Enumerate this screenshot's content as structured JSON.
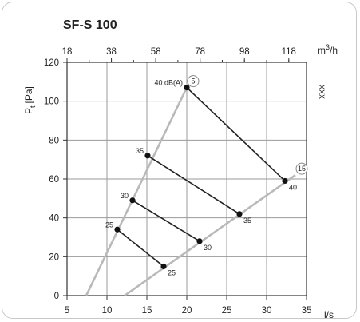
{
  "chart_data": {
    "type": "line",
    "title": "SF-S 100",
    "xlabel": "l/s",
    "ylabel": "Pt [Pa]",
    "ylabel_main": "P",
    "ylabel_sub": "t",
    "ylabel_unit": "[Pa]",
    "x2label": "m3/h",
    "x2label_main": "m",
    "x2label_sup": "3",
    "x2label_rest": "/h",
    "xlim": [
      5,
      35
    ],
    "ylim": [
      0,
      120
    ],
    "x_ticks": [
      "5",
      "10",
      "15",
      "20",
      "25",
      "30",
      "35"
    ],
    "y_ticks": [
      "0",
      "20",
      "40",
      "60",
      "80",
      "100",
      "120"
    ],
    "x2_ticks": [
      "18",
      "38",
      "58",
      "78",
      "98",
      "118"
    ],
    "side_note": "XXX",
    "grid": true,
    "series": [
      {
        "name": "5",
        "role": "curve",
        "color": "#b9b9b9",
        "points": [
          [
            7.4,
            0
          ],
          [
            20,
            107
          ]
        ]
      },
      {
        "name": "15",
        "role": "curve",
        "color": "#b9b9b9",
        "points": [
          [
            12.2,
            0
          ],
          [
            33.6,
            62
          ]
        ]
      },
      {
        "label": "40 dB(A)",
        "end_label": "40",
        "role": "sound",
        "color": "#222222",
        "points": [
          [
            20,
            107
          ],
          [
            32.3,
            59
          ]
        ]
      },
      {
        "label": "35",
        "end_label": "35",
        "role": "sound",
        "color": "#222222",
        "points": [
          [
            15.1,
            72
          ],
          [
            26.6,
            42
          ]
        ]
      },
      {
        "label": "30",
        "end_label": "30",
        "role": "sound",
        "color": "#222222",
        "points": [
          [
            13.2,
            49
          ],
          [
            21.6,
            28
          ]
        ]
      },
      {
        "label": "25",
        "end_label": "25",
        "role": "sound",
        "color": "#222222",
        "points": [
          [
            11.3,
            34
          ],
          [
            17.1,
            15
          ]
        ]
      }
    ]
  }
}
